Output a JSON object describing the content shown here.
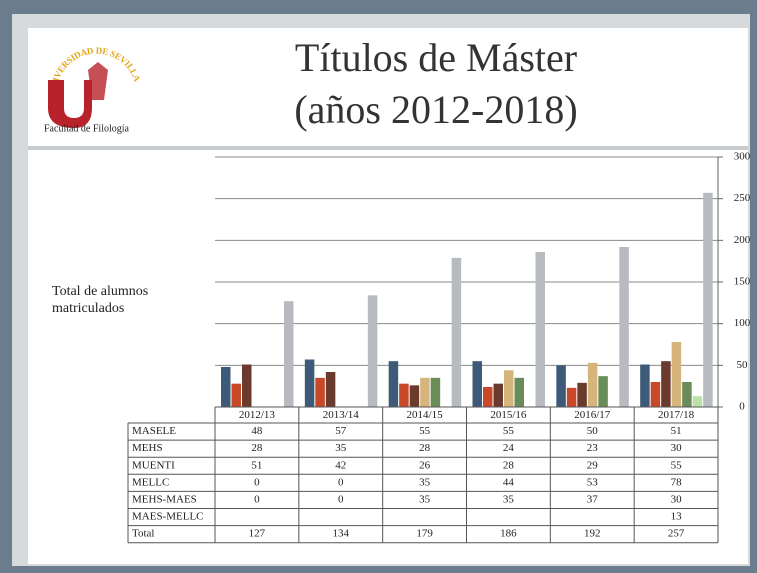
{
  "logo": {
    "arc_text": "UNIVERSIDAD DE SEVILLA",
    "caption": "Facultad de Filología"
  },
  "chart_data": {
    "type": "bar",
    "title": "Títulos de Máster",
    "subtitle": "(años 2012-2018)",
    "y_label": "Total de alumnos matriculados",
    "categories": [
      "2012/13",
      "2013/14",
      "2014/15",
      "2015/16",
      "2016/17",
      "2017/18"
    ],
    "series": [
      {
        "name": "MASELE",
        "color": "#3d5b78",
        "values": [
          48,
          57,
          55,
          55,
          50,
          51
        ]
      },
      {
        "name": "MEHS",
        "color": "#c8482a",
        "values": [
          28,
          35,
          28,
          24,
          23,
          30
        ]
      },
      {
        "name": "MUENTI",
        "color": "#6a3a2c",
        "values": [
          51,
          42,
          26,
          28,
          29,
          55
        ]
      },
      {
        "name": "MELLC",
        "color": "#d6b57c",
        "values": [
          0,
          0,
          35,
          44,
          53,
          78
        ]
      },
      {
        "name": "MEHS-MAES",
        "color": "#6a8c58",
        "values": [
          0,
          0,
          35,
          35,
          37,
          30
        ]
      },
      {
        "name": "MAES-MELLC",
        "color": "#bfe0a6",
        "values": [
          null,
          null,
          null,
          null,
          null,
          13
        ]
      },
      {
        "name": "Total",
        "color": "#b7bbbf",
        "values": [
          127,
          134,
          179,
          186,
          192,
          257
        ]
      }
    ],
    "ylim": [
      0,
      300
    ],
    "yticks": [
      0,
      50,
      100,
      150,
      200,
      250,
      300
    ],
    "grid": true,
    "y_axis_side": "right"
  }
}
